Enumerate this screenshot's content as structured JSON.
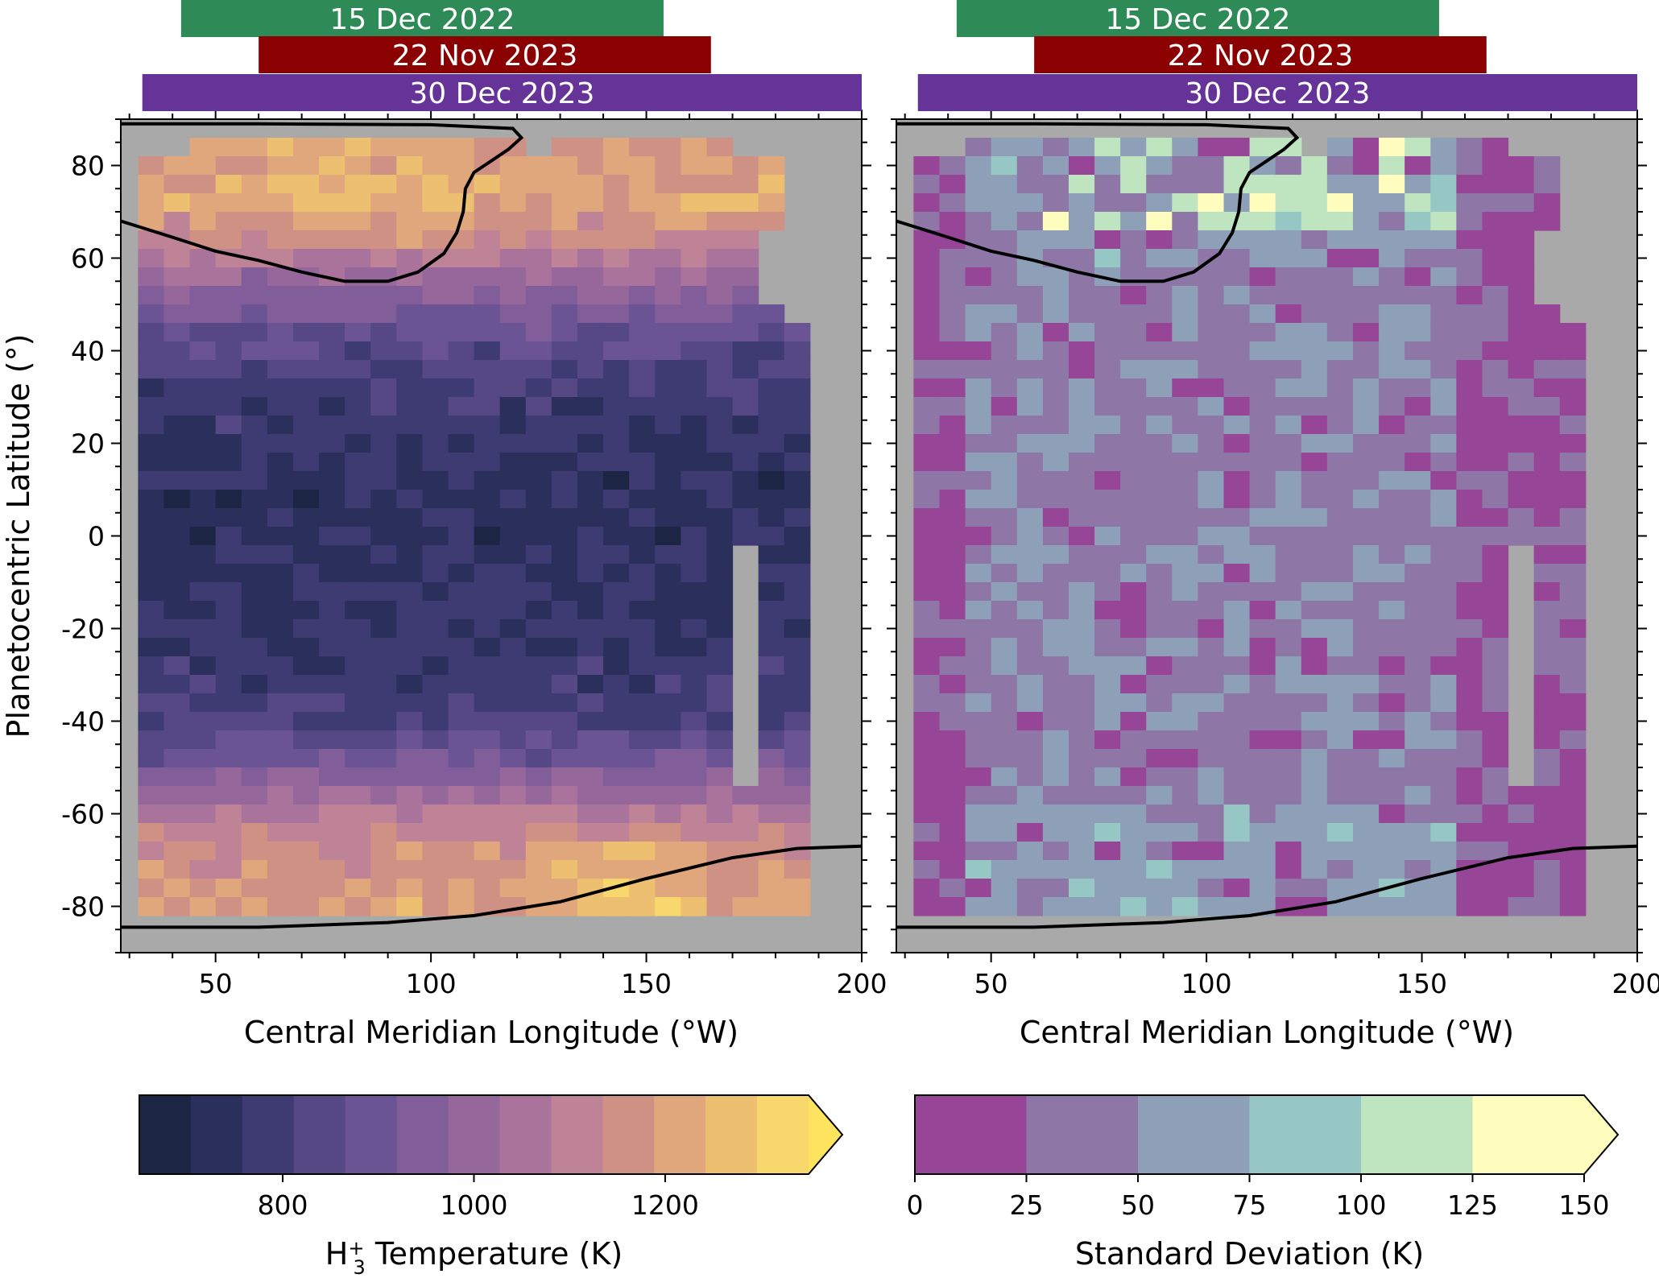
{
  "chart_data": [
    {
      "type": "heatmap",
      "panel": "left",
      "xlabel": "Central Meridian Longitude (°W)",
      "ylabel": "Planetocentric Latitude (°)",
      "xlim": [
        28,
        200
      ],
      "ylim": [
        -90,
        90
      ],
      "xticks": [
        50,
        100,
        150,
        200
      ],
      "yticks": [
        -80,
        -60,
        -40,
        -20,
        0,
        20,
        40,
        60,
        80
      ],
      "xtick_labels": [
        "50",
        "100",
        "150",
        "200"
      ],
      "ytick_labels": [
        "-80",
        "-60",
        "-40",
        "-20",
        "0",
        "20",
        "40",
        "60",
        "80"
      ],
      "observation_bars": [
        {
          "label": "15 Dec 2022",
          "lon_range": [
            42,
            154
          ],
          "color": "#2e8b57"
        },
        {
          "label": "22 Nov 2023",
          "lon_range": [
            60,
            165
          ],
          "color": "#8b0000"
        },
        {
          "label": "30 Dec 2023",
          "lon_range": [
            33,
            200
          ],
          "color": "#663399"
        }
      ],
      "grid_cell_deg": {
        "lon": 6,
        "lat": 4
      },
      "no_data_color": "#a9a9a9",
      "data_coverage": {
        "lon_range": [
          32,
          188
        ],
        "lat_range": [
          -82,
          86
        ]
      },
      "mean_temperature_profile_K": [
        {
          "lat": 82,
          "value": 1180
        },
        {
          "lat": 78,
          "value": 1200
        },
        {
          "lat": 74,
          "value": 1230
        },
        {
          "lat": 70,
          "value": 1200
        },
        {
          "lat": 66,
          "value": 1150
        },
        {
          "lat": 62,
          "value": 1100
        },
        {
          "lat": 58,
          "value": 1040
        },
        {
          "lat": 54,
          "value": 990
        },
        {
          "lat": 50,
          "value": 940
        },
        {
          "lat": 46,
          "value": 900
        },
        {
          "lat": 42,
          "value": 860
        },
        {
          "lat": 38,
          "value": 830
        },
        {
          "lat": 34,
          "value": 810
        },
        {
          "lat": 30,
          "value": 790
        },
        {
          "lat": 20,
          "value": 760
        },
        {
          "lat": 10,
          "value": 740
        },
        {
          "lat": 0,
          "value": 740
        },
        {
          "lat": -10,
          "value": 750
        },
        {
          "lat": -20,
          "value": 760
        },
        {
          "lat": -30,
          "value": 780
        },
        {
          "lat": -38,
          "value": 810
        },
        {
          "lat": -42,
          "value": 840
        },
        {
          "lat": -46,
          "value": 880
        },
        {
          "lat": -50,
          "value": 930
        },
        {
          "lat": -54,
          "value": 990
        },
        {
          "lat": -58,
          "value": 1050
        },
        {
          "lat": -62,
          "value": 1110
        },
        {
          "lat": -66,
          "value": 1150
        },
        {
          "lat": -70,
          "value": 1160
        },
        {
          "lat": -74,
          "value": 1180
        },
        {
          "lat": -78,
          "value": 1200
        }
      ],
      "auroral_contours": [
        {
          "hemisphere": "north",
          "points": [
            [
              28,
              68
            ],
            [
              40,
              64.5
            ],
            [
              50,
              61.5
            ],
            [
              60,
              59.5
            ],
            [
              70,
              57
            ],
            [
              80,
              55
            ],
            [
              90,
              55
            ],
            [
              97,
              57
            ],
            [
              103,
              61
            ],
            [
              106,
              65.5
            ],
            [
              107.5,
              70
            ],
            [
              108,
              75
            ],
            [
              110,
              78.5
            ],
            [
              114,
              81
            ],
            [
              118,
              83.5
            ],
            [
              121,
              86
            ],
            [
              119,
              88
            ],
            [
              100,
              88.8
            ],
            [
              60,
              89
            ],
            [
              28,
              89
            ]
          ]
        },
        {
          "hemisphere": "south",
          "points": [
            [
              28,
              -84.5
            ],
            [
              60,
              -84.5
            ],
            [
              90,
              -83.5
            ],
            [
              110,
              -82
            ],
            [
              130,
              -79
            ],
            [
              150,
              -74
            ],
            [
              170,
              -69.5
            ],
            [
              185,
              -67.5
            ],
            [
              200,
              -67
            ]
          ]
        }
      ],
      "colorbar": {
        "label_html": "H<tspan dy=\"-12\" font-size=\"24\">+</tspan><tspan dy=\"24\" dx=\"-14\" font-size=\"24\">3</tspan><tspan dy=\"-12\"> Temperature (K)</tspan>",
        "label": "H3+ Temperature (K)",
        "range": [
          650,
          1350
        ],
        "extend": "max",
        "ticks": [
          800,
          1000,
          1200
        ],
        "tick_labels": [
          "800",
          "1000",
          "1200"
        ],
        "colors": [
          "#1c2543",
          "#2b2f5b",
          "#3e3a72",
          "#554885",
          "#6b5494",
          "#815d99",
          "#96679b",
          "#a9739b",
          "#be8396",
          "#d09185",
          "#e1a77c",
          "#edc071",
          "#f8d86d",
          "#fee35f"
        ]
      }
    },
    {
      "type": "heatmap",
      "panel": "right",
      "xlabel": "Central Meridian Longitude (°W)",
      "xlim": [
        28,
        200
      ],
      "ylim": [
        -90,
        90
      ],
      "xticks": [
        50,
        100,
        150,
        200
      ],
      "xtick_labels": [
        "50",
        "100",
        "150",
        "200"
      ],
      "observation_bars": [
        {
          "label": "15 Dec 2022",
          "lon_range": [
            42,
            154
          ],
          "color": "#2e8b57"
        },
        {
          "label": "22 Nov 2023",
          "lon_range": [
            60,
            165
          ],
          "color": "#8b0000"
        },
        {
          "label": "30 Dec 2023",
          "lon_range": [
            33,
            200
          ],
          "color": "#663399"
        }
      ],
      "grid_cell_deg": {
        "lon": 6,
        "lat": 4
      },
      "no_data_color": "#a9a9a9",
      "data_coverage": {
        "lon_range": [
          32,
          188
        ],
        "lat_range": [
          -82,
          86
        ]
      },
      "auroral_contours": [
        {
          "hemisphere": "north",
          "points": [
            [
              28,
              68
            ],
            [
              40,
              64.5
            ],
            [
              50,
              61.5
            ],
            [
              60,
              59.5
            ],
            [
              70,
              57
            ],
            [
              80,
              55
            ],
            [
              90,
              55
            ],
            [
              97,
              57
            ],
            [
              103,
              61
            ],
            [
              106,
              65.5
            ],
            [
              107.5,
              70
            ],
            [
              108,
              75
            ],
            [
              110,
              78.5
            ],
            [
              114,
              81
            ],
            [
              118,
              83.5
            ],
            [
              121,
              86
            ],
            [
              119,
              88
            ],
            [
              100,
              88.8
            ],
            [
              60,
              89
            ],
            [
              28,
              89
            ]
          ]
        },
        {
          "hemisphere": "south",
          "points": [
            [
              28,
              -84.5
            ],
            [
              60,
              -84.5
            ],
            [
              90,
              -83.5
            ],
            [
              110,
              -82
            ],
            [
              130,
              -79
            ],
            [
              150,
              -74
            ],
            [
              170,
              -69.5
            ],
            [
              185,
              -67.5
            ],
            [
              200,
              -67
            ]
          ]
        }
      ],
      "colorbar": {
        "label": "Standard Deviation (K)",
        "range": [
          0,
          150
        ],
        "extend": "max",
        "ticks": [
          0,
          25,
          50,
          75,
          100,
          125,
          150
        ],
        "tick_labels": [
          "0",
          "25",
          "50",
          "75",
          "100",
          "125",
          "150"
        ],
        "colors": [
          "#974596",
          "#8e76a6",
          "#8ea0b8",
          "#97c7c4",
          "#bfe4c0",
          "#fffdbe"
        ]
      }
    }
  ]
}
